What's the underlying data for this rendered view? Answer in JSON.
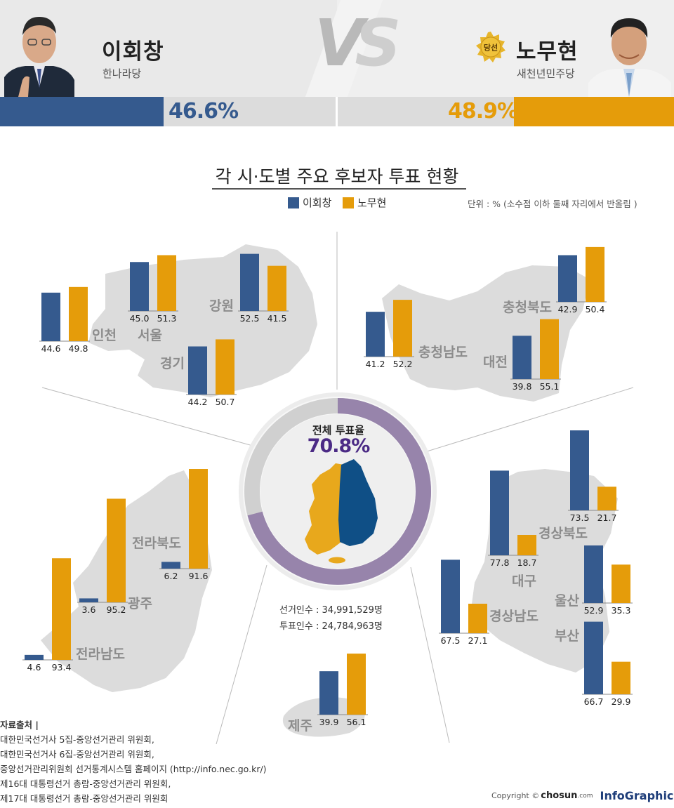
{
  "header": {
    "left": {
      "name": "이회창",
      "party": "한나라당",
      "percent": "46.6%",
      "share": 46.6,
      "color": "#355a8e"
    },
    "right": {
      "name": "노무현",
      "party": "새천년민주당",
      "percent": "48.9%",
      "share": 48.9,
      "color": "#e59c0a",
      "badge": "당선"
    },
    "vs_v": "V",
    "vs_s": "S"
  },
  "title": "각 시·도별 주요 후보자 투표 현황",
  "legend": [
    "이회창",
    "노무현"
  ],
  "unit_note": "단위 : % (소수점 이하 둘째 자리에서 반올림 )",
  "center": {
    "title": "전체 투표율",
    "turnout": "70.8%",
    "turnout_value": 70.8,
    "voters": "선거인수 : 34,991,529명",
    "ballots": "투표인수 : 24,784,963명"
  },
  "chart_data": {
    "type": "bar",
    "title": "각 시·도별 주요 후보자 투표 현황",
    "unit": "%",
    "series_names": [
      "이회창",
      "노무현"
    ],
    "colors": [
      "#355a8e",
      "#e59c0a"
    ],
    "regions": [
      {
        "name": "인천",
        "values": [
          44.6,
          49.8
        ]
      },
      {
        "name": "서울",
        "values": [
          45.0,
          51.3
        ]
      },
      {
        "name": "강원",
        "values": [
          52.5,
          41.5
        ]
      },
      {
        "name": "경기",
        "values": [
          44.2,
          50.7
        ]
      },
      {
        "name": "충청남도",
        "values": [
          41.2,
          52.2
        ]
      },
      {
        "name": "충청북도",
        "values": [
          42.9,
          50.4
        ]
      },
      {
        "name": "대전",
        "values": [
          39.8,
          55.1
        ]
      },
      {
        "name": "전라북도",
        "values": [
          6.2,
          91.6
        ]
      },
      {
        "name": "광주",
        "values": [
          3.6,
          95.2
        ]
      },
      {
        "name": "전라남도",
        "values": [
          4.6,
          93.4
        ]
      },
      {
        "name": "제주",
        "values": [
          39.9,
          56.1
        ]
      },
      {
        "name": "경상북도",
        "values": [
          73.5,
          21.7
        ]
      },
      {
        "name": "대구",
        "values": [
          77.8,
          18.7
        ]
      },
      {
        "name": "경상남도",
        "values": [
          67.5,
          27.1
        ]
      },
      {
        "name": "울산",
        "values": [
          52.9,
          35.3
        ]
      },
      {
        "name": "부산",
        "values": [
          66.7,
          29.9
        ]
      }
    ]
  },
  "source": {
    "head": "자료출처 |",
    "lines": [
      "대한민국선거사 5집-중앙선거관리 위원회,",
      "대한민국선거사 6집-중앙선거관리 위원회,",
      "중앙선거관리위원회 선거통계시스템 홈페이지 (http://info.nec.go.kr/)",
      "제16대 대통령선거 총람-중앙선거관리 위원회,",
      "제17대 대통령선거 총람-중앙선거관리 위원회"
    ]
  },
  "credit": {
    "copyright": "Copyright ©",
    "brand": "chosun",
    "domain": ".com",
    "logo": "InfoGraphics"
  }
}
